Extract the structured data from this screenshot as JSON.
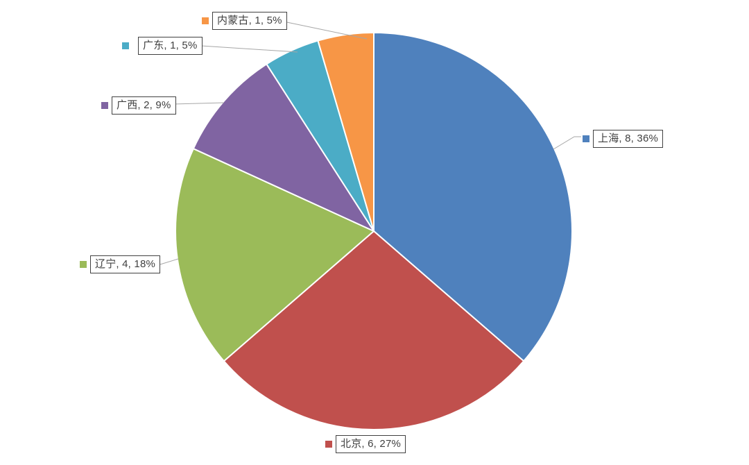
{
  "background_color": "#ffffff",
  "chart_data": {
    "type": "pie",
    "title": "",
    "categories": [
      "上海",
      "北京",
      "辽宁",
      "广西",
      "广东",
      "内蒙古"
    ],
    "values": [
      8,
      6,
      4,
      2,
      1,
      1
    ],
    "total": 22,
    "percent_labels": [
      "36%",
      "27%",
      "18%",
      "9%",
      "5%",
      "5%"
    ],
    "colors": [
      "#4F81BD",
      "#C0504D",
      "#9BBB59",
      "#8064A2",
      "#4BACC6",
      "#F79646"
    ],
    "start_angle_deg": 0,
    "direction": "clockwise",
    "legend_position": "none",
    "data_labels_visible": true,
    "label_format": "category, value, percent",
    "callouts": [
      {
        "text": "上海, 8, 36%"
      },
      {
        "text": "北京, 6, 27%"
      },
      {
        "text": "辽宁, 4, 18%"
      },
      {
        "text": "广西, 2, 9%"
      },
      {
        "text": "广东, 1, 5%"
      },
      {
        "text": "内蒙古, 1, 5%"
      }
    ],
    "leader_line_color": "#A6A6A6",
    "label_box_border_color": "#404040",
    "label_text_color": "#404040",
    "slice_separator_color": "#FFFFFF"
  }
}
